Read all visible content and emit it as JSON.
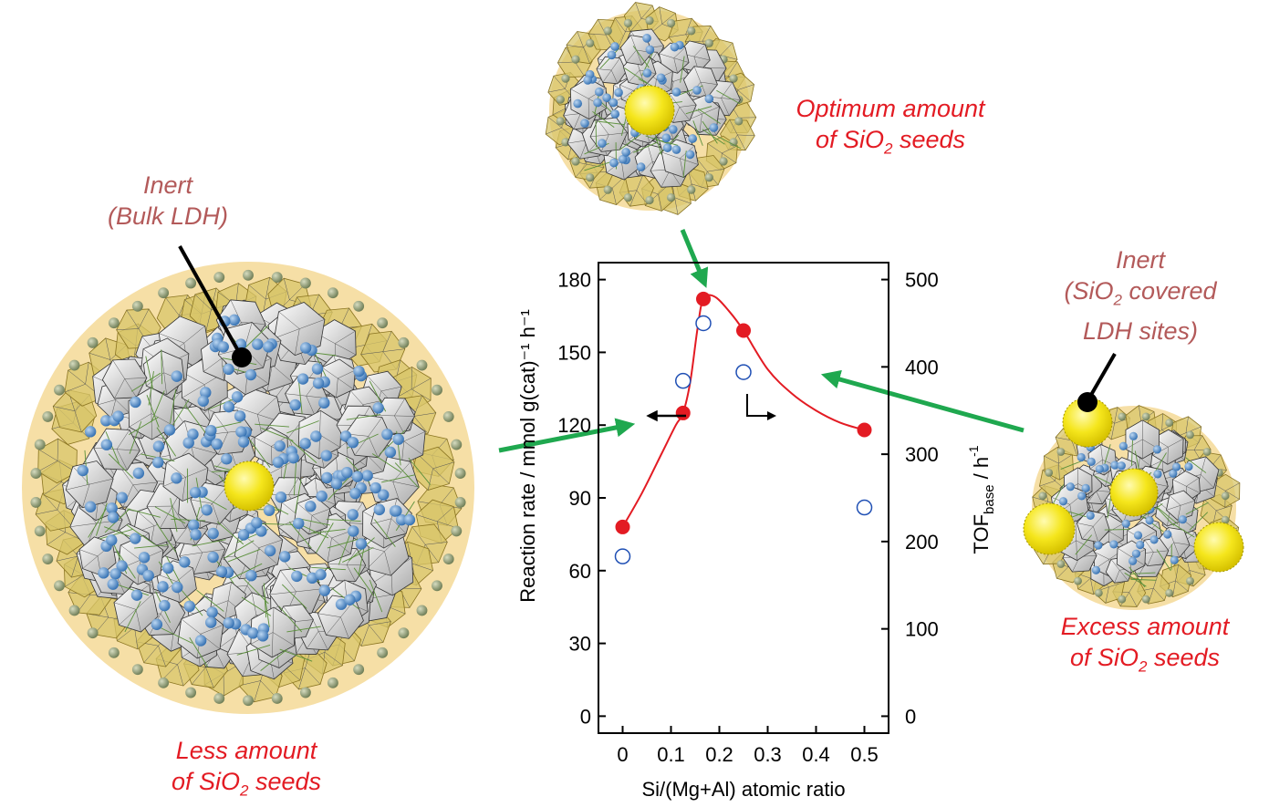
{
  "labels": {
    "inert_bulk_line1": "Inert",
    "inert_bulk_line2": "(Bulk LDH)",
    "less_line1": "Less amount",
    "less_line2_pre": "of SiO",
    "less_line2_sub": "2",
    "less_line2_post": " seeds",
    "optimum_line1": "Optimum amount",
    "optimum_line2_pre": "of SiO",
    "optimum_line2_sub": "2",
    "optimum_line2_post": " seeds",
    "inert_sio2_line1": "Inert",
    "inert_sio2_line2_pre": "(SiO",
    "inert_sio2_line2_sub": "2",
    "inert_sio2_line2_post": " covered",
    "inert_sio2_line3": "LDH sites)",
    "excess_line1": "Excess amount",
    "excess_line2_pre": "of SiO",
    "excess_line2_sub": "2",
    "excess_line2_post": " seeds"
  },
  "colors": {
    "label_red": "#e31b23",
    "label_brown": "#b35a5a",
    "reaction_rate_series": "#e31b23",
    "tof_series": "#1f4fb4",
    "arrow_green": "#1fa84f",
    "particle_halo": "#f6dfa6",
    "sio2_seed": "#f5e61c"
  },
  "chart_data": {
    "type": "scatter",
    "xlabel": "Si/(Mg+Al) atomic ratio",
    "ylabel": "Reaction rate / mmol g(cat)⁻¹ h⁻¹",
    "y2label_pre": "TOF",
    "y2label_sub": "base",
    "y2label_post": " / h",
    "y2label_sup": "-1",
    "xlim": [
      -0.05,
      0.55
    ],
    "ylim": [
      -7,
      187
    ],
    "y2lim": [
      -19.4,
      519.4
    ],
    "xticks": [
      "0",
      "0.1",
      "0.2",
      "0.3",
      "0.4",
      "0.5"
    ],
    "xtick_values": [
      0,
      0.1,
      0.2,
      0.3,
      0.4,
      0.5
    ],
    "yticks": [
      "0",
      "30",
      "60",
      "90",
      "120",
      "150",
      "180"
    ],
    "ytick_values": [
      0,
      30,
      60,
      90,
      120,
      150,
      180
    ],
    "y2ticks": [
      "0",
      "100",
      "200",
      "300",
      "400",
      "500"
    ],
    "y2tick_values": [
      0,
      100,
      200,
      300,
      400,
      500
    ],
    "series": [
      {
        "axis": "left",
        "marker": "filled-circle",
        "x": [
          0,
          0.125,
          0.167,
          0.25,
          0.5
        ],
        "values": [
          78,
          125,
          172,
          159,
          118
        ]
      },
      {
        "axis": "right",
        "marker": "open-circle",
        "x": [
          0,
          0.125,
          0.167,
          0.25,
          0.5
        ],
        "values": [
          183,
          384,
          450,
          394,
          239
        ]
      }
    ],
    "fit_curve": {
      "axis": "left",
      "x": [
        0,
        0.04,
        0.08,
        0.11,
        0.125,
        0.14,
        0.155,
        0.167,
        0.19,
        0.22,
        0.25,
        0.3,
        0.35,
        0.4,
        0.45,
        0.5
      ],
      "values": [
        78,
        92,
        108,
        120,
        125,
        138,
        160,
        172,
        173,
        167,
        159,
        143,
        133,
        126,
        121,
        118
      ]
    }
  }
}
